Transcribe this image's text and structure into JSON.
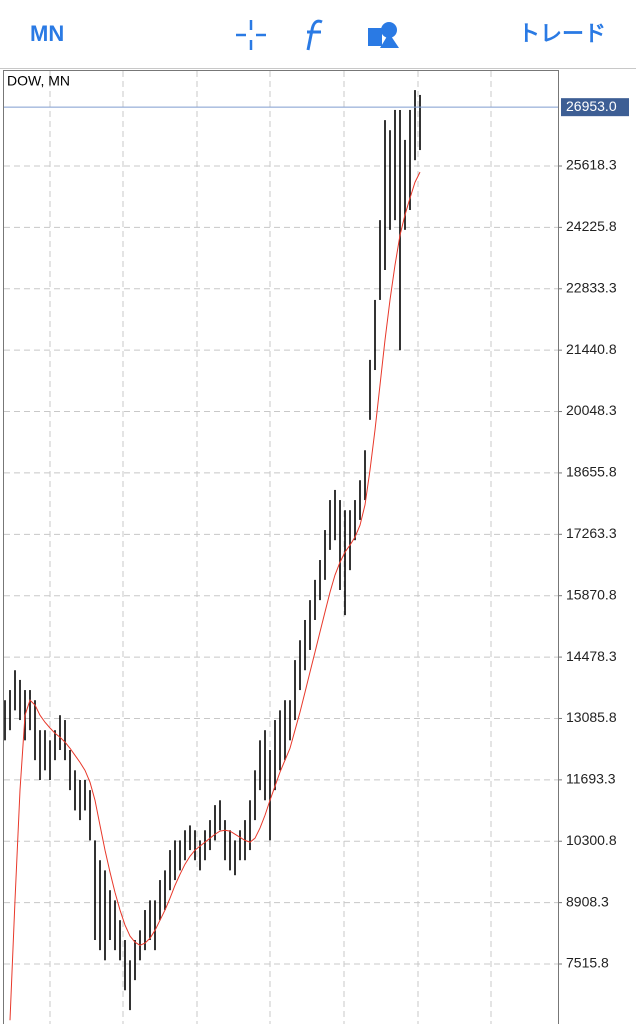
{
  "toolbar": {
    "timeframe": "MN",
    "trade": "トレード"
  },
  "chart_data": {
    "type": "hilo",
    "title": "DOW, MN",
    "color": "#000000",
    "ylim": [
      6155,
      27796
    ],
    "yticks": [
      7515.8,
      8908.3,
      10300.8,
      11693.3,
      13085.8,
      14478.3,
      15870.8,
      17263.3,
      18655.8,
      20048.3,
      21440.8,
      22833.3,
      24225.8,
      25618.3
    ],
    "grid": true,
    "current_price": {
      "value": 26953.0,
      "label": "26953.0"
    },
    "high": [
      13500,
      13730,
      14180,
      13960,
      13730,
      13730,
      13500,
      12820,
      12820,
      12590,
      12820,
      13160,
      13050,
      12370,
      11910,
      11690,
      11690,
      11460,
      10320,
      9870,
      9640,
      9190,
      8960,
      8510,
      8060,
      7600,
      8060,
      8280,
      8740,
      8960,
      8960,
      9420,
      9640,
      10100,
      10320,
      10320,
      10550,
      10660,
      10550,
      10320,
      10550,
      10780,
      11120,
      11230,
      10780,
      10550,
      10320,
      10550,
      10780,
      11230,
      11910,
      12590,
      12820,
      12370,
      13050,
      13270,
      13500,
      13500,
      14410,
      14860,
      15320,
      15770,
      16230,
      16680,
      17360,
      18040,
      18270,
      18040,
      17810,
      17810,
      18040,
      18490,
      19170,
      21220,
      22580,
      24390,
      26660,
      26430,
      26890,
      26890,
      26210,
      26890,
      27340,
      27230
    ],
    "low": [
      12590,
      12820,
      13270,
      13050,
      12590,
      12820,
      12140,
      11690,
      11910,
      11690,
      12140,
      12370,
      12140,
      11460,
      11000,
      10780,
      11000,
      10320,
      8060,
      7830,
      7600,
      8060,
      7830,
      7600,
      6920,
      6470,
      7150,
      7600,
      7830,
      8060,
      7830,
      8510,
      8740,
      9190,
      9420,
      9640,
      9870,
      10100,
      9870,
      9640,
      9870,
      10100,
      10320,
      10550,
      9870,
      9640,
      9530,
      9870,
      9870,
      10100,
      10780,
      11460,
      11230,
      10320,
      11460,
      11910,
      12140,
      12590,
      13050,
      13730,
      14180,
      14640,
      15320,
      15770,
      16230,
      16910,
      17130,
      16000,
      15430,
      16450,
      17130,
      17590,
      18040,
      19860,
      20990,
      22580,
      23260,
      24170,
      24390,
      21440,
      24170,
      24620,
      25750,
      25980
    ],
    "ma": {
      "color": "#e8382a",
      "values": [
        null,
        6240,
        8960,
        11460,
        13160,
        13500,
        13390,
        13160,
        13000,
        12870,
        12750,
        12660,
        12550,
        12410,
        12250,
        12090,
        11910,
        11640,
        11230,
        10660,
        10100,
        9600,
        9140,
        8740,
        8400,
        8150,
        8010,
        7940,
        7990,
        8100,
        8280,
        8510,
        8740,
        9010,
        9300,
        9550,
        9780,
        9960,
        10100,
        10190,
        10280,
        10370,
        10460,
        10530,
        10550,
        10530,
        10460,
        10390,
        10320,
        10280,
        10370,
        10600,
        10890,
        11230,
        11550,
        11870,
        12140,
        12410,
        12820,
        13230,
        13680,
        14140,
        14590,
        15050,
        15500,
        15950,
        16340,
        16630,
        16860,
        17020,
        17200,
        17470,
        17930,
        18720,
        19630,
        20650,
        21670,
        22580,
        23370,
        24050,
        24510,
        24890,
        25250,
        25480
      ]
    }
  }
}
